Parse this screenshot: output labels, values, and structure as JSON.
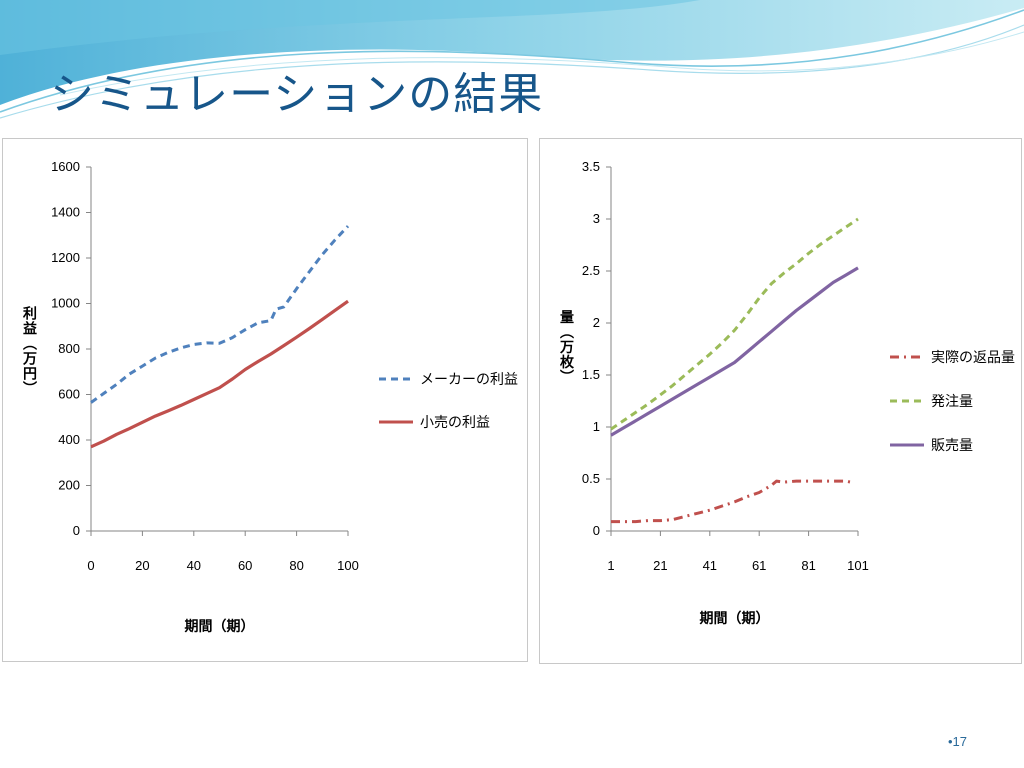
{
  "slide": {
    "title": "シミュレーションの結果",
    "page_number": "•17"
  },
  "colors": {
    "title": "#17568a",
    "maker_profit": "#4f81bd",
    "retail_profit": "#c0504d",
    "returns": "#c0504d",
    "orders": "#9bbb59",
    "sales": "#8064a2"
  },
  "chart_data": [
    {
      "type": "line",
      "title": "",
      "xlabel": "期間（期）",
      "ylabel": "利益（万円）",
      "xlim": [
        0,
        100
      ],
      "ylim": [
        0,
        1600
      ],
      "xticks": [
        "0",
        "20",
        "40",
        "60",
        "80",
        "100"
      ],
      "yticks": [
        "0",
        "200",
        "400",
        "600",
        "800",
        "1000",
        "1200",
        "1400",
        "1600"
      ],
      "legend_position": "right",
      "series": [
        {
          "name": "メーカーの利益",
          "style": "dashed",
          "color": "#4f81bd",
          "x": [
            0,
            5,
            10,
            15,
            20,
            25,
            30,
            35,
            40,
            45,
            50,
            55,
            60,
            65,
            70,
            72,
            75,
            80,
            85,
            90,
            95,
            100
          ],
          "y": [
            565,
            605,
            645,
            690,
            725,
            760,
            785,
            805,
            820,
            827,
            825,
            850,
            885,
            915,
            925,
            975,
            985,
            1065,
            1140,
            1215,
            1280,
            1340
          ]
        },
        {
          "name": "小売の利益",
          "style": "solid",
          "color": "#c0504d",
          "x": [
            0,
            5,
            10,
            15,
            20,
            25,
            30,
            35,
            40,
            45,
            50,
            55,
            60,
            65,
            70,
            75,
            80,
            85,
            90,
            95,
            100
          ],
          "y": [
            370,
            395,
            425,
            450,
            478,
            505,
            528,
            552,
            578,
            604,
            630,
            668,
            710,
            745,
            778,
            815,
            852,
            890,
            930,
            970,
            1010
          ]
        }
      ]
    },
    {
      "type": "line",
      "title": "",
      "xlabel": "期間（期）",
      "ylabel": "量（万枚）",
      "xlim": [
        1,
        101
      ],
      "ylim": [
        0,
        3.5
      ],
      "xticks": [
        "1",
        "21",
        "41",
        "61",
        "81",
        "101"
      ],
      "yticks": [
        "0",
        "0.5",
        "1",
        "1.5",
        "2",
        "2.5",
        "3",
        "3.5"
      ],
      "legend_position": "right",
      "series": [
        {
          "name": "実際の返品量",
          "style": "dash-dot",
          "color": "#c0504d",
          "x": [
            1,
            6,
            11,
            16,
            21,
            26,
            31,
            36,
            41,
            46,
            51,
            56,
            61,
            66,
            68,
            71,
            76,
            81,
            86,
            91,
            96,
            98
          ],
          "y": [
            0.09,
            0.09,
            0.09,
            0.1,
            0.1,
            0.11,
            0.14,
            0.17,
            0.2,
            0.24,
            0.28,
            0.33,
            0.37,
            0.44,
            0.48,
            0.47,
            0.48,
            0.48,
            0.48,
            0.48,
            0.48,
            0.47
          ]
        },
        {
          "name": "発注量",
          "style": "dashed",
          "color": "#9bbb59",
          "x": [
            1,
            6,
            11,
            16,
            21,
            26,
            31,
            36,
            41,
            46,
            51,
            56,
            61,
            66,
            71,
            76,
            81,
            86,
            91,
            96,
            101
          ],
          "y": [
            0.98,
            1.06,
            1.14,
            1.22,
            1.31,
            1.4,
            1.5,
            1.6,
            1.7,
            1.81,
            1.93,
            2.08,
            2.24,
            2.38,
            2.48,
            2.57,
            2.67,
            2.76,
            2.84,
            2.92,
            3.0
          ]
        },
        {
          "name": "販売量",
          "style": "solid",
          "color": "#8064a2",
          "x": [
            1,
            6,
            11,
            16,
            21,
            26,
            31,
            36,
            41,
            46,
            51,
            56,
            61,
            66,
            71,
            76,
            81,
            86,
            91,
            96,
            101
          ],
          "y": [
            0.92,
            0.99,
            1.06,
            1.13,
            1.2,
            1.27,
            1.34,
            1.41,
            1.48,
            1.55,
            1.62,
            1.72,
            1.82,
            1.92,
            2.02,
            2.12,
            2.21,
            2.3,
            2.39,
            2.46,
            2.53
          ]
        }
      ]
    }
  ]
}
